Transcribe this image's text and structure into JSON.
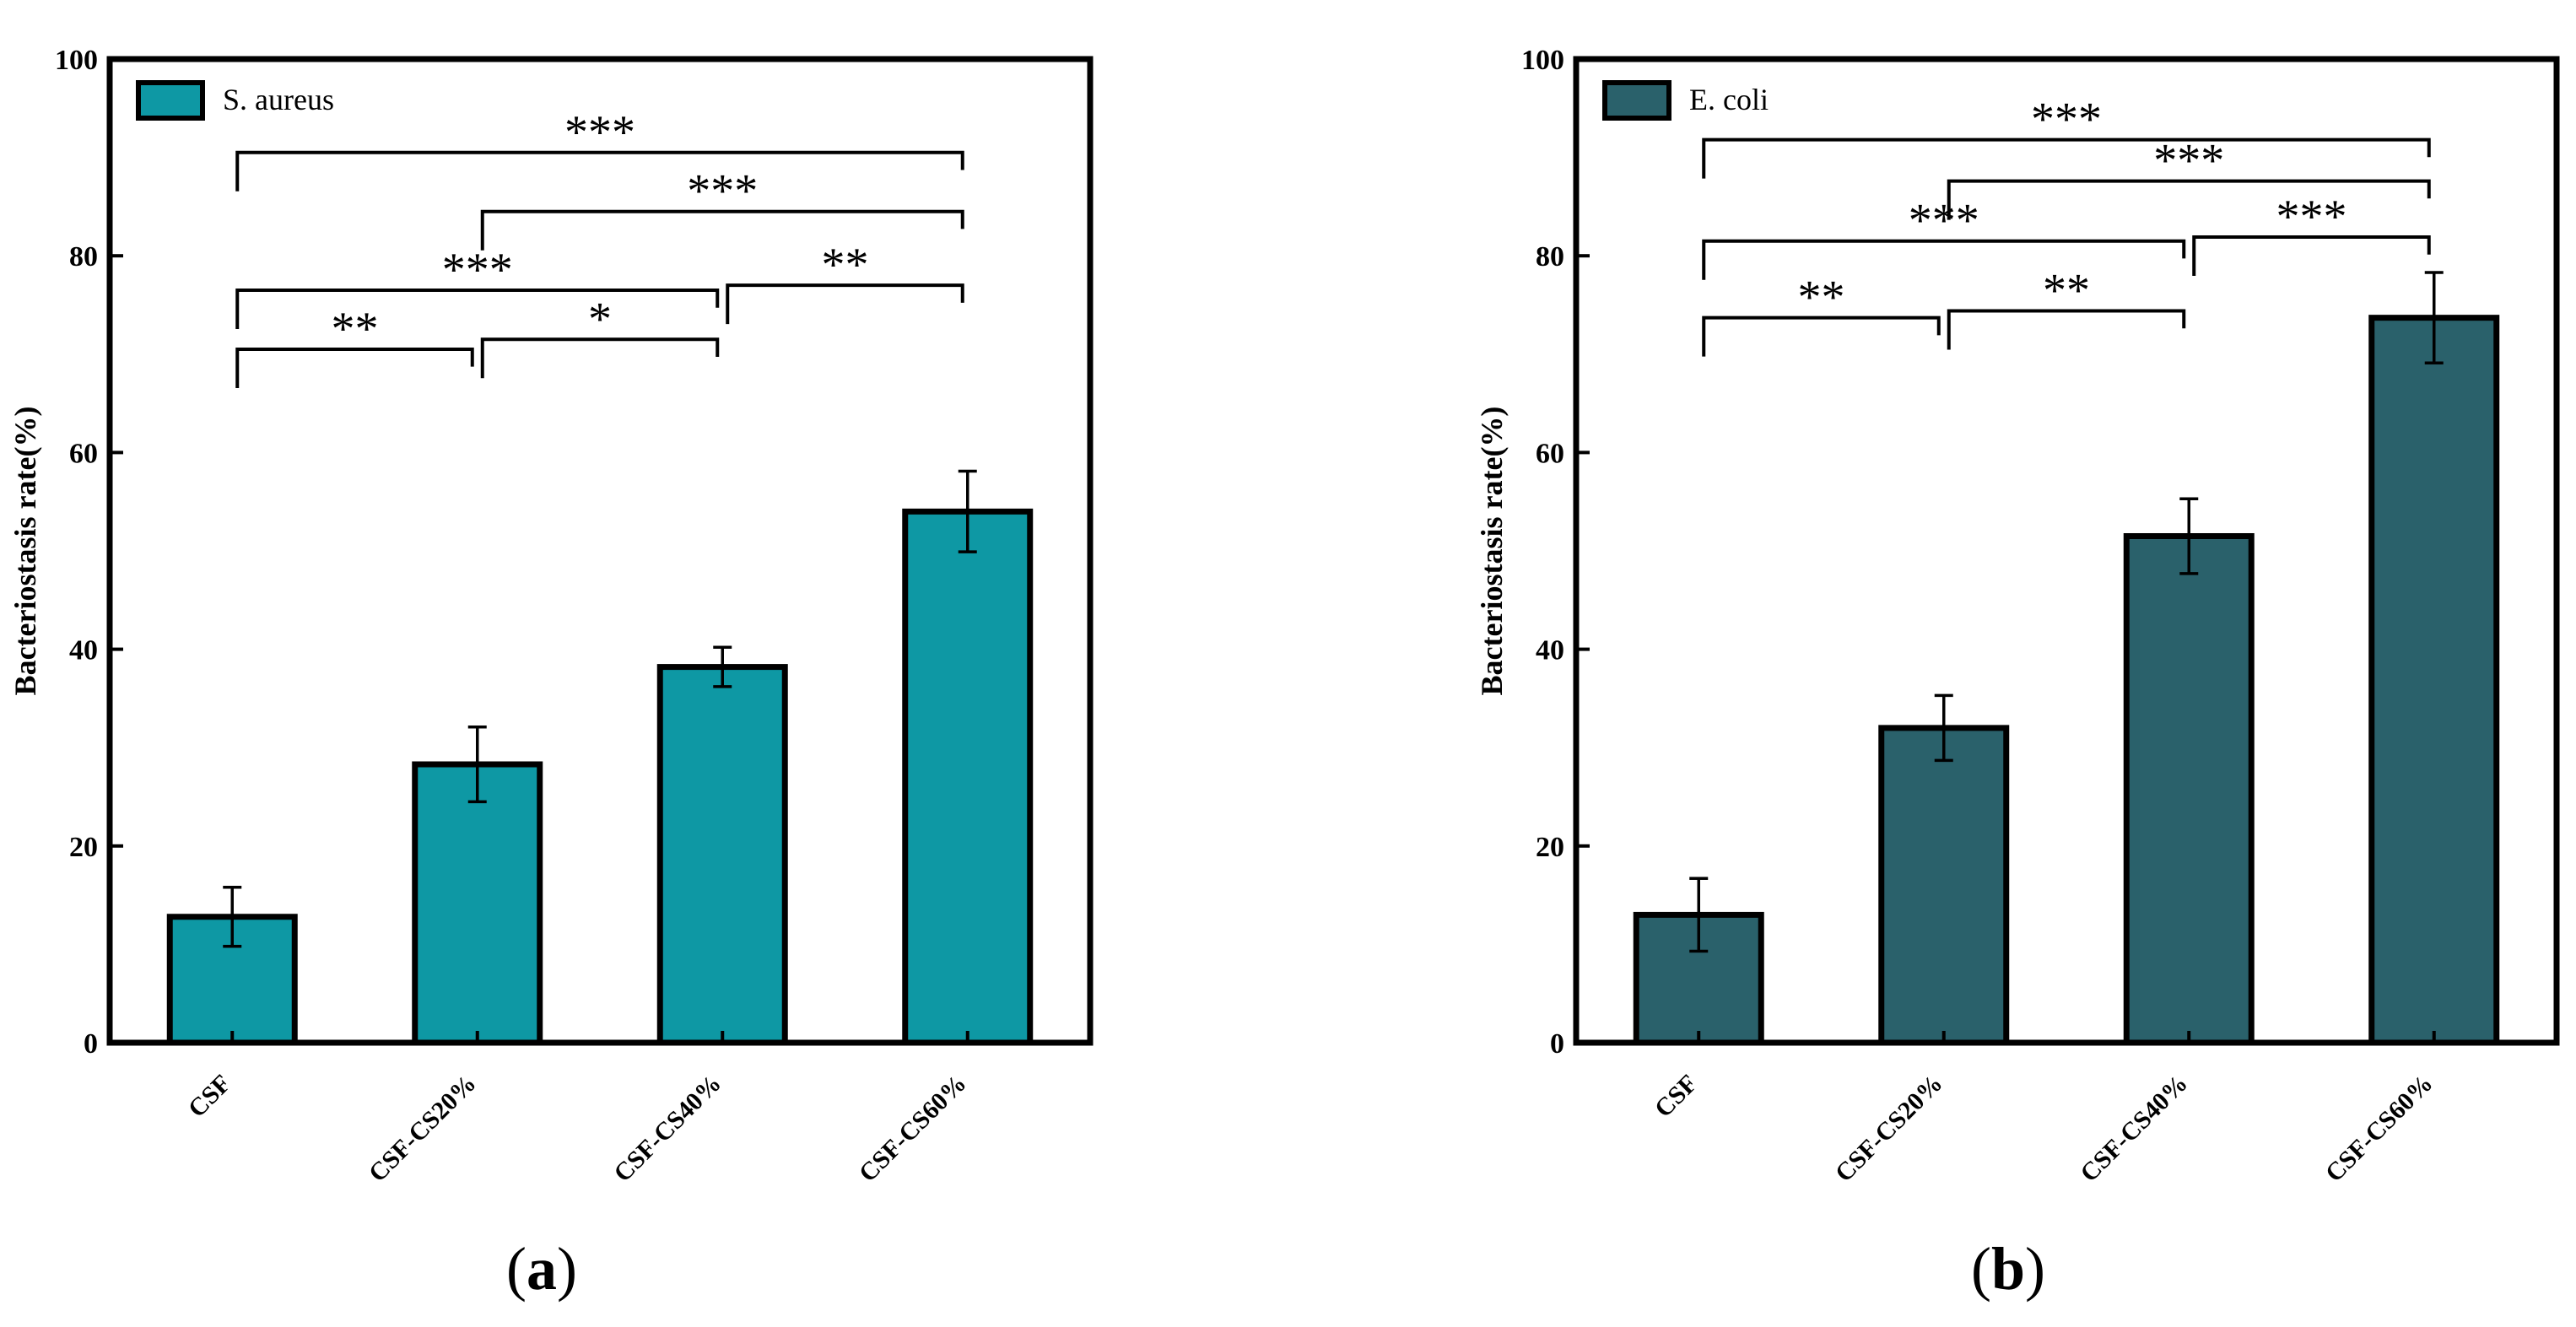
{
  "chart_data": [
    {
      "type": "bar",
      "panel_label": "a",
      "title": "",
      "xlabel": "",
      "ylabel": "Bacteriostasis rate(%)",
      "ylim": [
        0,
        100
      ],
      "yticks": [
        0,
        20,
        40,
        60,
        80,
        100
      ],
      "categories": [
        "CSF",
        "CSF-CS20%",
        "CSF-CS40%",
        "CSF-CS60%"
      ],
      "series": [
        {
          "name": "S. aureus",
          "values": [
            12.8,
            28.3,
            38.2,
            54.0
          ],
          "errors": [
            3.0,
            3.8,
            2.0,
            4.1
          ]
        }
      ],
      "legend": {
        "position": "top-left"
      },
      "color": "#0e98a4",
      "grid": false,
      "significance": [
        {
          "from": 0,
          "to": 3,
          "label": "***",
          "y": 90.5
        },
        {
          "from": 1,
          "to": 3,
          "label": "***",
          "y": 84.5
        },
        {
          "from": 0,
          "to": 2,
          "label": "***",
          "y": 76.5
        },
        {
          "from": 2,
          "to": 3,
          "label": "**",
          "y": 77.0
        },
        {
          "from": 0,
          "to": 1,
          "label": "**",
          "y": 70.5
        },
        {
          "from": 1,
          "to": 2,
          "label": "*",
          "y": 71.5
        }
      ]
    },
    {
      "type": "bar",
      "panel_label": "b",
      "title": "",
      "xlabel": "",
      "ylabel": "Bacteriostasis rate(%)",
      "ylim": [
        0,
        100
      ],
      "yticks": [
        0,
        20,
        40,
        60,
        80,
        100
      ],
      "categories": [
        "CSF",
        "CSF-CS20%",
        "CSF-CS40%",
        "CSF-CS60%"
      ],
      "series": [
        {
          "name": "E. coli",
          "values": [
            13.0,
            32.0,
            51.5,
            73.7
          ],
          "errors": [
            3.7,
            3.3,
            3.8,
            4.6
          ]
        }
      ],
      "legend": {
        "position": "top-left"
      },
      "color": "#2a616b",
      "grid": false,
      "significance": [
        {
          "from": 0,
          "to": 3,
          "label": "***",
          "y": 91.8
        },
        {
          "from": 1,
          "to": 3,
          "label": "***",
          "y": 87.6
        },
        {
          "from": 0,
          "to": 2,
          "label": "***",
          "y": 81.5
        },
        {
          "from": 2,
          "to": 3,
          "label": "***",
          "y": 81.9
        },
        {
          "from": 0,
          "to": 1,
          "label": "**",
          "y": 73.7
        },
        {
          "from": 1,
          "to": 2,
          "label": "**",
          "y": 74.4
        }
      ]
    }
  ]
}
